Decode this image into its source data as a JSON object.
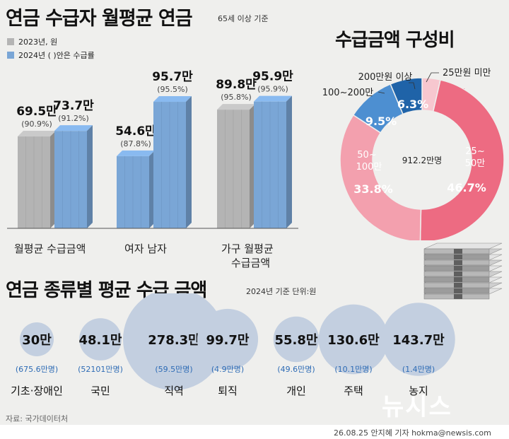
{
  "colors": {
    "gray": "#b4b4b4",
    "blue": "#7aa6d6",
    "pink1": "#ed6b82",
    "pink2": "#f3a0ae",
    "pink3": "#f7c7cf",
    "navy": "#1f63a8",
    "ltblue": "#4d8fd1",
    "bubble": "#c3cfe0",
    "caption_blue": "#2d6bb5"
  },
  "title_main": "연금 수급자 월평균 연금",
  "title_main_note": "65세 이상 기준",
  "legend": {
    "a": "2023년, 원",
    "b": "2024년 ( )안은 수급률"
  },
  "bar_groups": [
    {
      "label": "월평균 수급금액",
      "label_lines": [
        "월평균 수급금액"
      ]
    },
    {
      "label": "여자 남자",
      "label_lines": [
        "여자 남자"
      ]
    },
    {
      "label": "가구 월평균 수급금액",
      "label_lines": [
        "가구 월평균",
        "수급금액"
      ]
    }
  ],
  "title_donut": "수급금액 구성비",
  "donut_center": "912.2만명",
  "title_bubbles": "연금 종류별 평균 수급 금액",
  "bubbles_note": "2024년 기준 단위:원",
  "source": "자료: 국가데이터처",
  "credit": "26.08.25 안지혜 기자 hokma@newsis.com",
  "watermark": "뉴시스",
  "chart_data": [
    {
      "type": "bar",
      "title": "연금 수급자 월평균 연금",
      "ylim": [
        0,
        100
      ],
      "series": [
        {
          "name": "2023년",
          "values": [
            69.5,
            54.6,
            89.8
          ]
        },
        {
          "name": "2024년",
          "values": [
            73.7,
            95.7,
            95.9
          ]
        }
      ],
      "bars": [
        {
          "value": 69.5,
          "label": "69.5만",
          "rate": "(90.9%)",
          "series": "2023",
          "category": "월평균"
        },
        {
          "value": 73.7,
          "label": "73.7만",
          "rate": "(91.2%)",
          "series": "2024",
          "category": "수급금액"
        },
        {
          "value": 54.6,
          "label": "54.6만",
          "rate": "(87.8%)",
          "series": "2024",
          "category": "여자"
        },
        {
          "value": 95.7,
          "label": "95.7만",
          "rate": "(95.5%)",
          "series": "2024",
          "category": "남자"
        },
        {
          "value": 89.8,
          "label": "89.8만",
          "rate": "(95.8%)",
          "series": "2023",
          "category": "가구 월평균 수급금액"
        },
        {
          "value": 95.9,
          "label": "95.9만",
          "rate": "(95.9%)",
          "series": "2024",
          "category": "가구 월평균 수급금액"
        }
      ]
    },
    {
      "type": "pie",
      "title": "수급금액 구성비",
      "center_label": "912.2만명",
      "slices": [
        {
          "label": "25만원 미만",
          "value": 3.6,
          "label_text": "3.6%",
          "color": "#f7c7cf"
        },
        {
          "label": "25~50만",
          "value": 46.7,
          "label_text": "46.7%",
          "color": "#ed6b82"
        },
        {
          "label": "50~100만",
          "value": 33.8,
          "label_text": "33.8%",
          "color": "#f3a0ae"
        },
        {
          "label": "100~200만",
          "value": 9.5,
          "label_text": "9.5%",
          "color": "#4d8fd1"
        },
        {
          "label": "200만원 이상",
          "value": 6.3,
          "label_text": "6.3%",
          "color": "#1f63a8"
        }
      ]
    },
    {
      "type": "bubble",
      "title": "연금 종류별 평균 수급 금액",
      "items": [
        {
          "name": "기초·장애인",
          "value": 30,
          "value_text": "30만",
          "count": "(675.6만명)"
        },
        {
          "name": "국민",
          "value": 48.1,
          "value_text": "48.1만",
          "count": "(52101만명)"
        },
        {
          "name": "직역",
          "value": 278.3,
          "value_text": "278.3만",
          "count": "(59.5만명)"
        },
        {
          "name": "퇴직",
          "value": 99.7,
          "value_text": "99.7만",
          "count": "(4.9만명)"
        },
        {
          "name": "개인",
          "value": 55.8,
          "value_text": "55.8만",
          "count": "(49.6만명)"
        },
        {
          "name": "주택",
          "value": 130.6,
          "value_text": "130.6만",
          "count": "(10.1만명)"
        },
        {
          "name": "농지",
          "value": 143.7,
          "value_text": "143.7만",
          "count": "(1.4만명)"
        }
      ]
    }
  ]
}
